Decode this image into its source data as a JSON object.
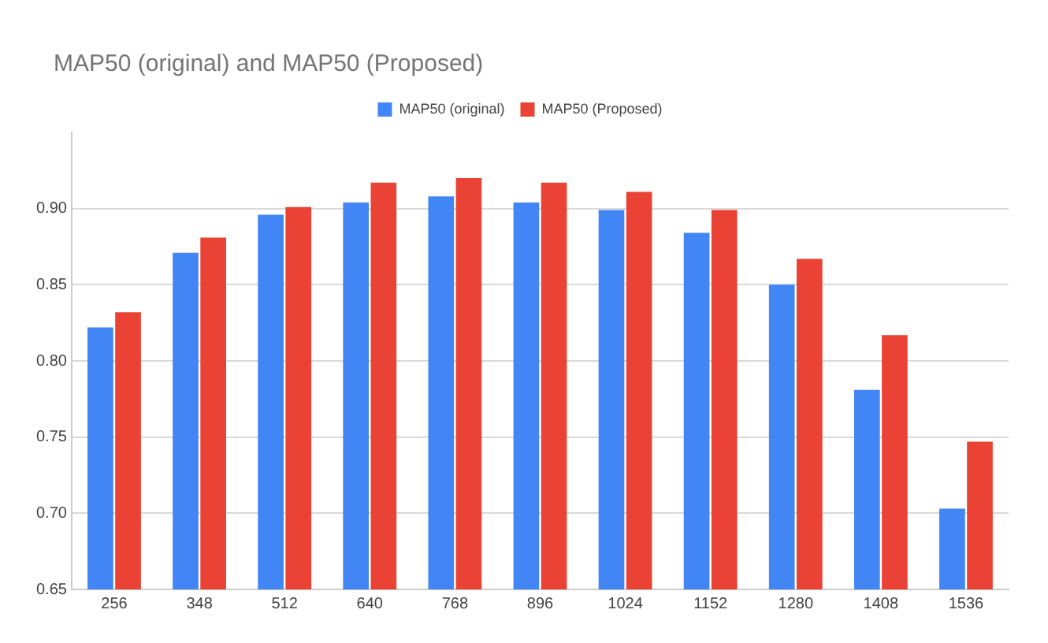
{
  "chart_data": {
    "type": "bar",
    "title": "MAP50 (original) and MAP50 (Proposed)",
    "categories": [
      "256",
      "348",
      "512",
      "640",
      "768",
      "896",
      "1024",
      "1152",
      "1280",
      "1408",
      "1536"
    ],
    "series": [
      {
        "name": "MAP50 (original)",
        "color": "#4285f4",
        "values": [
          0.822,
          0.871,
          0.896,
          0.904,
          0.908,
          0.904,
          0.899,
          0.884,
          0.85,
          0.781,
          0.703
        ]
      },
      {
        "name": "MAP50 (Proposed)",
        "color": "#ea4335",
        "values": [
          0.832,
          0.881,
          0.901,
          0.917,
          0.92,
          0.917,
          0.911,
          0.899,
          0.867,
          0.817,
          0.747
        ]
      }
    ],
    "ylim": [
      0.65,
      0.95
    ],
    "yticks": [
      {
        "value": 0.65,
        "label": "0.65"
      },
      {
        "value": 0.7,
        "label": "0.70"
      },
      {
        "value": 0.75,
        "label": "0.75"
      },
      {
        "value": 0.8,
        "label": "0.80"
      },
      {
        "value": 0.85,
        "label": "0.85"
      },
      {
        "value": 0.9,
        "label": "0.90"
      }
    ],
    "grid": "y",
    "legend": "top"
  }
}
